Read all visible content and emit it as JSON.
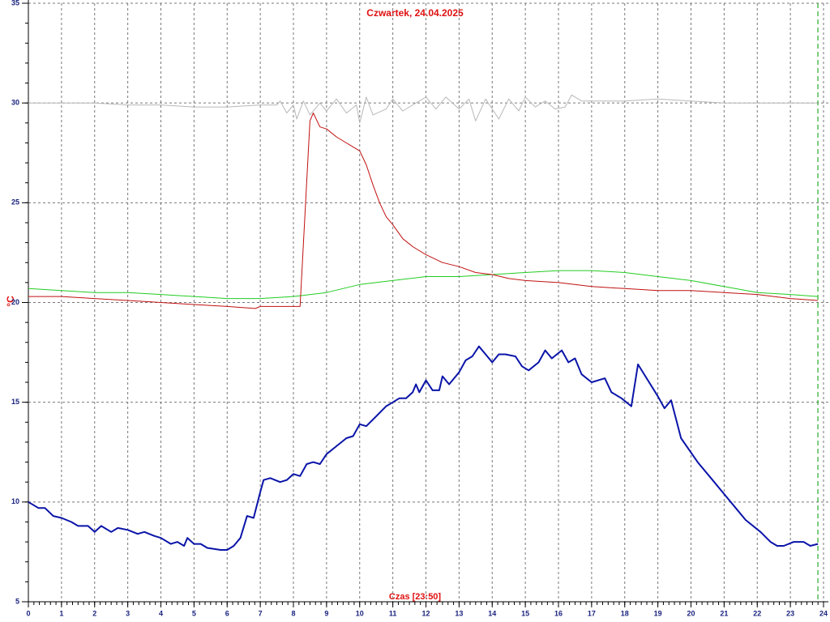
{
  "chart_data": {
    "type": "line",
    "title": "Czwartek, 24.04.2025",
    "xlabel": "Czas [23:50]",
    "ylabel": "°C",
    "xlim": [
      0,
      24
    ],
    "ylim": [
      5,
      35
    ],
    "xticks": [
      0,
      1,
      2,
      3,
      4,
      5,
      6,
      7,
      8,
      9,
      10,
      11,
      12,
      13,
      14,
      15,
      16,
      17,
      18,
      19,
      20,
      21,
      22,
      23,
      24
    ],
    "yticks": [
      5,
      10,
      15,
      20,
      25,
      30,
      35
    ],
    "grid": true,
    "now_line": {
      "x": 23.83,
      "color": "#009900"
    },
    "series": [
      {
        "color": "#b8b8b8",
        "width": 1,
        "x": [
          0,
          1,
          2,
          3,
          4,
          5,
          6,
          7,
          7.5,
          7.6,
          7.8,
          8,
          8.1,
          8.3,
          8.5,
          8.8,
          9,
          9.3,
          9.6,
          9.9,
          10,
          10.2,
          10.4,
          10.8,
          11,
          11.3,
          11.7,
          12,
          12.3,
          12.6,
          13,
          13.3,
          13.5,
          13.8,
          14,
          14.2,
          14.5,
          14.8,
          15,
          15.3,
          15.6,
          15.9,
          16.2,
          16.4,
          16.7,
          17,
          18,
          19,
          20,
          21,
          22,
          23,
          23.83
        ],
        "values": [
          30.0,
          30.0,
          30.0,
          29.9,
          29.9,
          29.8,
          29.8,
          29.9,
          29.9,
          30.1,
          29.5,
          29.9,
          29.2,
          30.1,
          29.4,
          30.0,
          29.6,
          30.2,
          29.5,
          29.9,
          29.0,
          30.3,
          29.4,
          29.7,
          30.2,
          29.6,
          30.0,
          30.3,
          29.7,
          30.3,
          29.7,
          30.2,
          29.1,
          30.2,
          29.7,
          29.2,
          30.2,
          29.6,
          30.3,
          29.8,
          30.1,
          29.7,
          29.8,
          30.4,
          30.1,
          30.1,
          30.1,
          30.2,
          30.1,
          30.0,
          30.0,
          30.0,
          30.0
        ]
      },
      {
        "color": "#22cc22",
        "width": 1,
        "x": [
          0,
          1,
          2,
          3,
          4,
          5,
          6,
          7,
          8,
          9,
          10,
          11,
          12,
          13,
          14,
          15,
          16,
          17,
          18,
          19,
          20,
          21,
          22,
          23,
          23.83
        ],
        "values": [
          20.7,
          20.6,
          20.5,
          20.5,
          20.4,
          20.3,
          20.2,
          20.2,
          20.3,
          20.5,
          20.9,
          21.1,
          21.3,
          21.3,
          21.4,
          21.5,
          21.6,
          21.6,
          21.5,
          21.3,
          21.1,
          20.8,
          20.5,
          20.4,
          20.3
        ]
      },
      {
        "color": "#c01010",
        "width": 1,
        "x": [
          0,
          1,
          2,
          3,
          4,
          5,
          6,
          6.85,
          7,
          8.2,
          8.5,
          8.6,
          8.8,
          9,
          9.3,
          9.5,
          9.8,
          10,
          10.2,
          10.4,
          10.6,
          10.8,
          11,
          11.3,
          11.6,
          12,
          12.5,
          13,
          13.5,
          14,
          14.5,
          15,
          16,
          17,
          18,
          19,
          20,
          21,
          22,
          23,
          23.83
        ],
        "values": [
          20.3,
          20.3,
          20.2,
          20.1,
          20.0,
          19.9,
          19.8,
          19.7,
          19.8,
          19.8,
          29.1,
          29.5,
          28.8,
          28.7,
          28.3,
          28.1,
          27.8,
          27.6,
          26.9,
          25.9,
          25.0,
          24.3,
          23.9,
          23.2,
          22.8,
          22.4,
          22.0,
          21.8,
          21.5,
          21.4,
          21.2,
          21.1,
          21.0,
          20.8,
          20.7,
          20.6,
          20.6,
          20.5,
          20.4,
          20.2,
          20.1
        ]
      },
      {
        "color": "#0a14a8",
        "width": 2,
        "x": [
          0,
          0.3,
          0.5,
          0.75,
          1,
          1.3,
          1.5,
          1.8,
          2,
          2.2,
          2.5,
          2.7,
          3,
          3.3,
          3.5,
          3.8,
          4,
          4.3,
          4.5,
          4.7,
          4.8,
          5,
          5.2,
          5.4,
          5.8,
          6,
          6.2,
          6.4,
          6.6,
          6.8,
          7,
          7.1,
          7.3,
          7.6,
          7.8,
          8,
          8.2,
          8.4,
          8.6,
          8.8,
          9,
          9.3,
          9.6,
          9.8,
          10,
          10.2,
          10.5,
          10.8,
          11,
          11.2,
          11.4,
          11.6,
          11.7,
          11.8,
          12,
          12.2,
          12.4,
          12.5,
          12.7,
          12.9,
          13,
          13.2,
          13.4,
          13.6,
          13.8,
          14,
          14.2,
          14.4,
          14.7,
          14.9,
          15.1,
          15.4,
          15.6,
          15.8,
          16.1,
          16.3,
          16.5,
          16.7,
          17,
          17.4,
          17.6,
          17.9,
          18.2,
          18.4,
          19,
          19.2,
          19.4,
          19.7,
          20.2,
          20.65,
          21.15,
          21.4,
          21.65,
          22.1,
          22.4,
          22.6,
          22.8,
          23.1,
          23.4,
          23.6,
          23.83
        ],
        "values": [
          10.0,
          9.7,
          9.7,
          9.3,
          9.2,
          9.0,
          8.8,
          8.8,
          8.5,
          8.8,
          8.5,
          8.7,
          8.6,
          8.4,
          8.5,
          8.3,
          8.2,
          7.9,
          8.0,
          7.8,
          8.2,
          7.9,
          7.9,
          7.7,
          7.6,
          7.6,
          7.8,
          8.2,
          9.3,
          9.2,
          10.5,
          11.1,
          11.2,
          11.0,
          11.1,
          11.4,
          11.3,
          11.9,
          12.0,
          11.9,
          12.4,
          12.8,
          13.2,
          13.3,
          13.9,
          13.8,
          14.3,
          14.8,
          15.0,
          15.2,
          15.2,
          15.5,
          15.9,
          15.5,
          16.1,
          15.6,
          15.6,
          16.3,
          15.9,
          16.3,
          16.5,
          17.1,
          17.3,
          17.8,
          17.4,
          17.0,
          17.4,
          17.4,
          17.3,
          16.8,
          16.6,
          17.0,
          17.6,
          17.2,
          17.6,
          17.0,
          17.2,
          16.4,
          16.0,
          16.2,
          15.5,
          15.2,
          14.8,
          16.9,
          15.3,
          14.7,
          15.1,
          13.2,
          12.0,
          11.1,
          10.1,
          9.6,
          9.1,
          8.5,
          8.0,
          7.8,
          7.8,
          8.0,
          8.0,
          7.8,
          7.9
        ]
      }
    ]
  }
}
